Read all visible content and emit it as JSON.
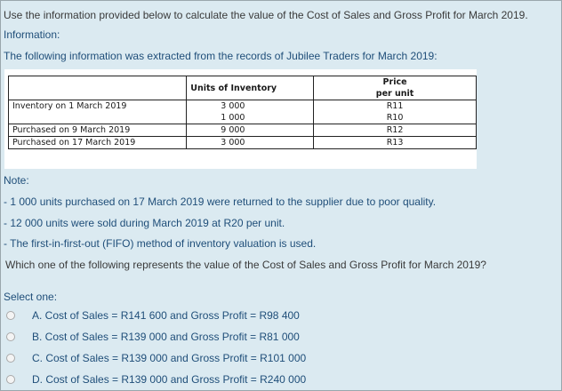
{
  "question": {
    "instruction": "Use the information provided below to calculate the value of the Cost of Sales and Gross Profit for March 2019.",
    "info_label": "Information:",
    "info_text": "The following information was extracted from the records of Jubilee Traders for March 2019:",
    "table": {
      "headers": {
        "units": "Units of Inventory",
        "price_line1": "Price",
        "price_line2": "per unit"
      },
      "rows": [
        {
          "label": "Inventory on 1 March 2019",
          "units": [
            "3 000",
            "1 000"
          ],
          "prices": [
            "R11",
            "R10"
          ]
        },
        {
          "label": "Purchased on 9 March 2019",
          "units": [
            "9 000"
          ],
          "prices": [
            "R12"
          ]
        },
        {
          "label": "Purchased on 17 March 2019",
          "units": [
            "3 000"
          ],
          "prices": [
            "R13"
          ]
        }
      ]
    },
    "note_label": "Note:",
    "notes": [
      "- 1 000 units purchased on 17 March 2019 were returned to the supplier due to poor quality.",
      "- 12 000 units were sold during March 2019 at R20 per unit.",
      "- The first-in-first-out (FIFO) method of inventory valuation is used."
    ],
    "prompt": "Which one of the following represents the value of the Cost of Sales and Gross Profit for March 2019?",
    "select_label": "Select one:",
    "options": [
      "A. Cost of Sales = R141 600 and Gross Profit = R98 400",
      "B. Cost of Sales = R139 000 and Gross Profit = R81 000",
      "C. Cost of Sales = R139 000 and Gross Profit = R101 000",
      "D. Cost of Sales = R139 000 and Gross Profit = R240 000"
    ]
  },
  "colors": {
    "panel_bg": "#dbeaf1",
    "text_blue": "#1f4e79",
    "text_gray": "#3a3a3a"
  }
}
